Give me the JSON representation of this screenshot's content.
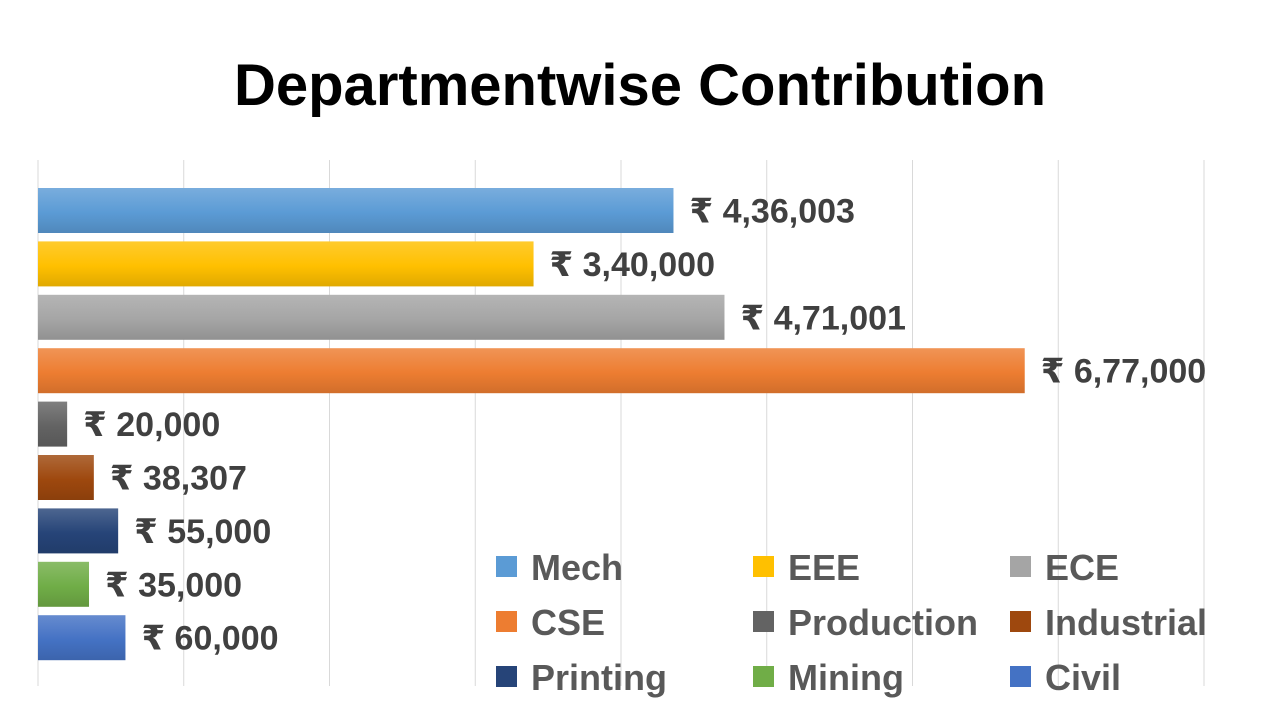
{
  "title": "Departmentwise Contribution",
  "chart_data": {
    "type": "bar",
    "orientation": "horizontal",
    "title": "Departmentwise Contribution",
    "xlabel": "",
    "ylabel": "",
    "xlim": [
      0,
      800000
    ],
    "grid": true,
    "legend_position": "bottom-right",
    "series": [
      {
        "name": "Mech",
        "value": 436003,
        "label": "₹ 4,36,003",
        "color": "#5B9BD5"
      },
      {
        "name": "EEE",
        "value": 340000,
        "label": "₹ 3,40,000",
        "color": "#FFC000"
      },
      {
        "name": "ECE",
        "value": 471001,
        "label": "₹ 4,71,001",
        "color": "#A5A5A5"
      },
      {
        "name": "CSE",
        "value": 677000,
        "label": "₹ 6,77,000",
        "color": "#ED7D31"
      },
      {
        "name": "Production",
        "value": 20000,
        "label": "₹ 20,000",
        "color": "#636363"
      },
      {
        "name": "Industrial",
        "value": 38307,
        "label": "₹ 38,307",
        "color": "#9E480E"
      },
      {
        "name": "Printing",
        "value": 55000,
        "label": "₹ 55,000",
        "color": "#264478"
      },
      {
        "name": "Mining",
        "value": 35000,
        "label": "₹ 35,000",
        "color": "#70AD47"
      },
      {
        "name": "Civil",
        "value": 60000,
        "label": "₹ 60,000",
        "color": "#4472C4"
      }
    ]
  }
}
